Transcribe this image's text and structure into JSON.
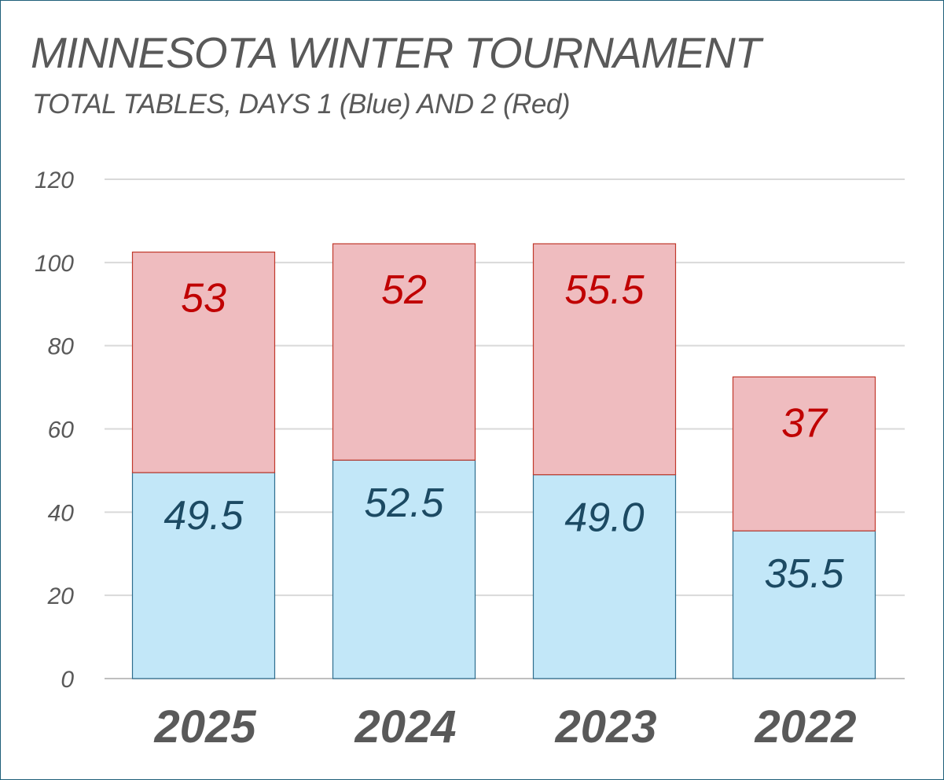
{
  "chart_data": {
    "type": "bar",
    "stacked": true,
    "title": "MINNESOTA WINTER TOURNAMENT",
    "subtitle": "TOTAL TABLES, DAYS 1 (Blue) AND 2 (Red)",
    "xlabel": "",
    "ylabel": "",
    "categories": [
      "2025",
      "2024",
      "2023",
      "2022"
    ],
    "series": [
      {
        "values": [
          49.5,
          52.5,
          49.0,
          35.5
        ],
        "labels": [
          "49.5",
          "52.5",
          "49.0",
          "35.5"
        ],
        "fill": "#c2e7f8",
        "stroke": "#2e6e8e",
        "label_color": "#1c4a63"
      },
      {
        "values": [
          53,
          52,
          55.5,
          37
        ],
        "labels": [
          "53",
          "52",
          "55.5",
          "37"
        ],
        "fill": "#efbcbf",
        "stroke": "#c0392b",
        "label_color": "#c00000"
      }
    ],
    "ylim": [
      0,
      120
    ],
    "yticks": [
      "0",
      "20",
      "40",
      "60",
      "80",
      "100",
      "120"
    ],
    "grid": true,
    "legend": "none"
  }
}
